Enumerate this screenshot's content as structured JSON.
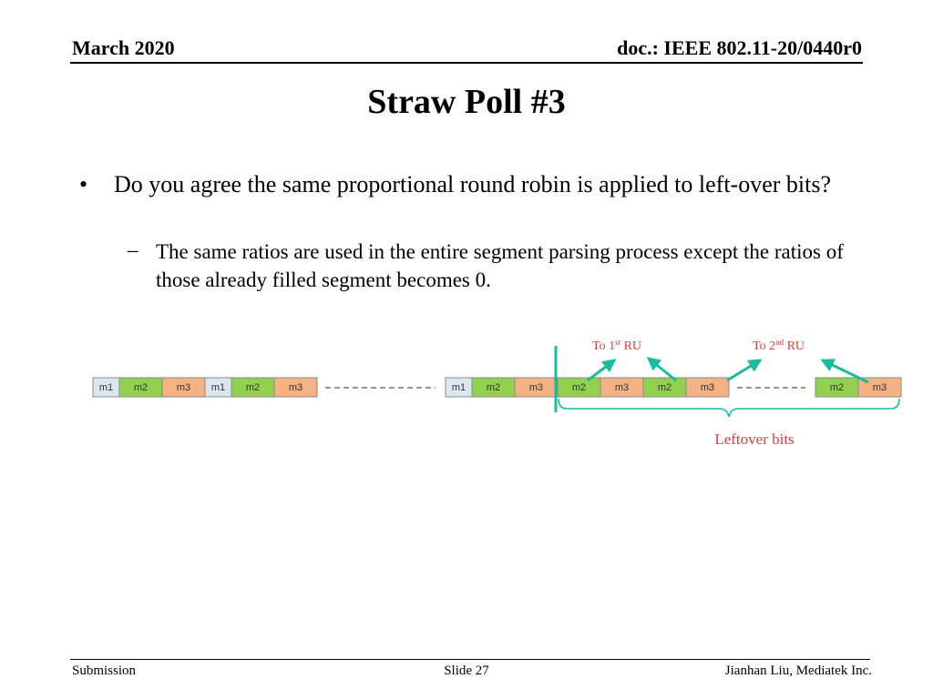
{
  "header": {
    "date": "March 2020",
    "doc": "doc.: IEEE 802.11-20/0440r0"
  },
  "title": "Straw Poll #3",
  "bullets": {
    "main": "Do you agree the same proportional round robin is applied to left-over bits?",
    "sub": "The same ratios are used in the entire segment parsing process except the ratios of those already filled segment becomes 0."
  },
  "diagram": {
    "labels": {
      "to_first": {
        "prefix": "To 1",
        "sup": "st",
        "suffix": " RU"
      },
      "to_second": {
        "prefix": "To 2",
        "sup": "nd",
        "suffix": " RU"
      },
      "leftover": "Leftover bits"
    },
    "row_a": [
      "m1",
      "m2",
      "m3",
      "m1",
      "m2",
      "m3"
    ],
    "row_b": [
      "m1",
      "m2",
      "m3",
      "m2",
      "m3",
      "m2",
      "m3"
    ],
    "row_c": [
      "m2",
      "m3"
    ],
    "colors": {
      "m1": "#dce6f1",
      "m2": "#92d050",
      "m3": "#f4b183",
      "arrow": "#1abc9c",
      "label": "#e23c3c"
    }
  },
  "footer": {
    "left": "Submission",
    "center": "Slide 27",
    "right": "Jianhan Liu, Mediatek Inc."
  }
}
